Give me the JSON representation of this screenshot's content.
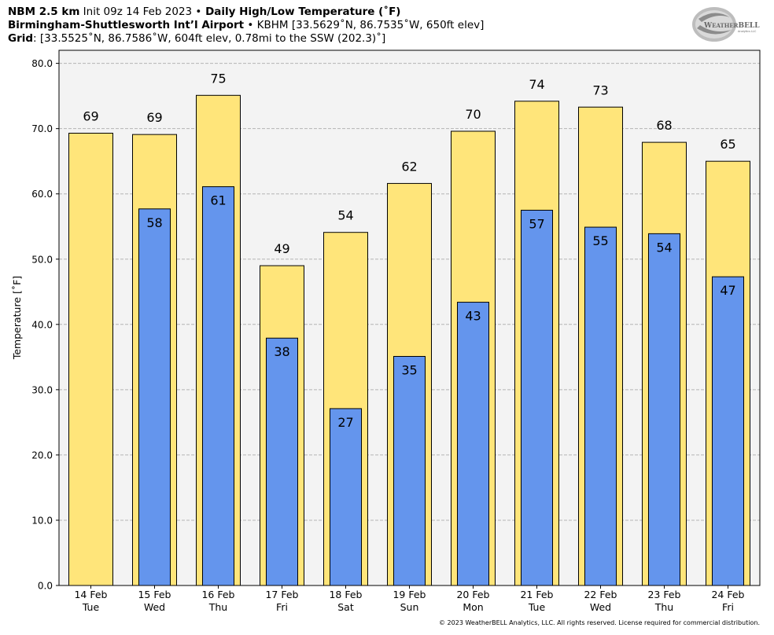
{
  "header": {
    "line1": {
      "model": "NBM 2.5 km",
      "init": " Init 09z 14 Feb 2023 ",
      "sep": "•",
      "product": " Daily High/Low Temperature (˚F)"
    },
    "line2": {
      "station": "Birmingham-Shuttlesworth Int’l Airport",
      "sep": " • ",
      "details": "KBHM [33.5629˚N, 86.7535˚W, 650ft elev]"
    },
    "line3": {
      "label": "Grid",
      "details": ": [33.5525˚N, 86.7586˚W, 604ft elev, 0.78mi to the SSW (202.3)˚]"
    }
  },
  "logo": {
    "text_a": "Weather",
    "text_b": "BELL",
    "sub": "Analytics LLC"
  },
  "copyright": "© 2023 WeatherBELL Analytics, LLC. All rights reserved. License required for commercial distribution.",
  "colors": {
    "high_bar": "#ffe57a",
    "low_bar": "#6495ed",
    "plot_bg": "#f3f3f3",
    "grid": "#b4b4b4"
  },
  "chart_data": {
    "type": "bar",
    "ylabel": "Temperature [˚F]",
    "ylim": [
      0,
      82
    ],
    "yticks": [
      "0.0",
      "10.0",
      "20.0",
      "30.0",
      "40.0",
      "50.0",
      "60.0",
      "70.0",
      "80.0"
    ],
    "grid": true,
    "categories": [
      {
        "date": "14 Feb",
        "day": "Tue"
      },
      {
        "date": "15 Feb",
        "day": "Wed"
      },
      {
        "date": "16 Feb",
        "day": "Thu"
      },
      {
        "date": "17 Feb",
        "day": "Fri"
      },
      {
        "date": "18 Feb",
        "day": "Sat"
      },
      {
        "date": "19 Feb",
        "day": "Sun"
      },
      {
        "date": "20 Feb",
        "day": "Mon"
      },
      {
        "date": "21 Feb",
        "day": "Tue"
      },
      {
        "date": "22 Feb",
        "day": "Wed"
      },
      {
        "date": "23 Feb",
        "day": "Thu"
      },
      {
        "date": "24 Feb",
        "day": "Fri"
      }
    ],
    "series": [
      {
        "values": [
          69.3,
          69.1,
          75.1,
          49.0,
          54.1,
          61.6,
          69.6,
          74.2,
          73.3,
          67.9,
          65.0
        ],
        "labels": [
          "69",
          "69",
          "75",
          "49",
          "54",
          "62",
          "70",
          "74",
          "73",
          "68",
          "65"
        ]
      },
      {
        "values": [
          null,
          57.7,
          61.1,
          37.9,
          27.1,
          35.1,
          43.4,
          57.5,
          54.9,
          53.9,
          47.3
        ],
        "labels": [
          "",
          "58",
          "61",
          "38",
          "27",
          "35",
          "43",
          "57",
          "55",
          "54",
          "47"
        ]
      }
    ]
  }
}
